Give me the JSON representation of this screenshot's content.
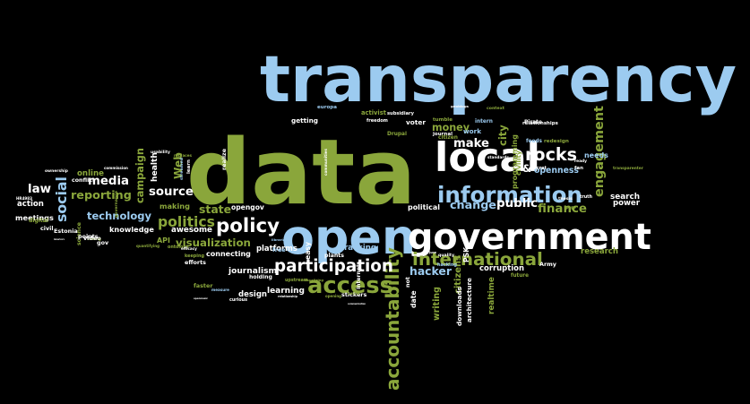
{
  "palette": {
    "background": "#000000",
    "blue": "#9ccbf0",
    "green": "#8aa63b",
    "white": "#ffffff",
    "grey": "#cfcfcf"
  },
  "words": [
    {
      "text": "transparency",
      "color": "#9ccbf0"
    },
    {
      "text": "data",
      "color": "#8aa63b"
    },
    {
      "text": "open",
      "color": "#9ccbf0"
    },
    {
      "text": "government",
      "color": "#ffffff"
    },
    {
      "text": "local",
      "color": "#ffffff"
    },
    {
      "text": "information",
      "color": "#9ccbf0"
    },
    {
      "text": "access",
      "color": "#8aa63b"
    },
    {
      "text": "accountability",
      "color": "#8aa63b"
    },
    {
      "text": "policy",
      "color": "#ffffff"
    },
    {
      "text": "international",
      "color": "#8aa63b"
    },
    {
      "text": "participation",
      "color": "#ffffff"
    },
    {
      "text": "politics",
      "color": "#8aa63b"
    },
    {
      "text": "rocks",
      "color": "#ffffff"
    },
    {
      "text": "engagement",
      "color": "#8aa63b"
    },
    {
      "text": "hacker",
      "color": "#9ccbf0"
    },
    {
      "text": "citizens",
      "color": "#8aa63b"
    },
    {
      "text": "finance",
      "color": "#8aa63b"
    },
    {
      "text": "make",
      "color": "#ffffff"
    },
    {
      "text": "money",
      "color": "#8aa63b"
    },
    {
      "text": "change",
      "color": "#9ccbf0"
    },
    {
      "text": "public",
      "color": "#ffffff"
    },
    {
      "text": "social",
      "color": "#9ccbf0"
    },
    {
      "text": "technology",
      "color": "#9ccbf0"
    },
    {
      "text": "reporting",
      "color": "#8aa63b"
    },
    {
      "text": "media",
      "color": "#ffffff"
    },
    {
      "text": "campaign",
      "color": "#8aa63b"
    },
    {
      "text": "source",
      "color": "#ffffff"
    },
    {
      "text": "visualization",
      "color": "#8aa63b"
    },
    {
      "text": "awesome",
      "color": "#ffffff"
    },
    {
      "text": "knowledge",
      "color": "#ffffff"
    },
    {
      "text": "law",
      "color": "#ffffff"
    },
    {
      "text": "Web",
      "color": "#8aa63b"
    },
    {
      "text": "health",
      "color": "#ffffff"
    },
    {
      "text": "making",
      "color": "#8aa63b"
    },
    {
      "text": "state",
      "color": "#8aa63b"
    },
    {
      "text": "opengov",
      "color": "#ffffff"
    },
    {
      "text": "platforms",
      "color": "#ffffff"
    },
    {
      "text": "tracking",
      "color": "#9ccbf0"
    },
    {
      "text": "connecting",
      "color": "#ffffff"
    },
    {
      "text": "journalism",
      "color": "#ffffff"
    },
    {
      "text": "learning",
      "color": "#ffffff"
    },
    {
      "text": "design",
      "color": "#ffffff"
    },
    {
      "text": "writing",
      "color": "#8aa63b"
    },
    {
      "text": "architecture",
      "color": "#ffffff"
    },
    {
      "text": "realtime",
      "color": "#8aa63b"
    },
    {
      "text": "corruption",
      "color": "#ffffff"
    },
    {
      "text": "research",
      "color": "#8aa63b"
    },
    {
      "text": "search",
      "color": "#ffffff"
    },
    {
      "text": "power",
      "color": "#ffffff"
    },
    {
      "text": "needs",
      "color": "#9ccbf0"
    },
    {
      "text": "openness",
      "color": "#9ccbf0"
    },
    {
      "text": "programming",
      "color": "#8aa63b"
    },
    {
      "text": "political",
      "color": "#ffffff"
    },
    {
      "text": "work",
      "color": "#9ccbf0"
    },
    {
      "text": "getting",
      "color": "#ffffff"
    },
    {
      "text": "activist",
      "color": "#8aa63b"
    },
    {
      "text": "voter",
      "color": "#ffffff"
    },
    {
      "text": "online",
      "color": "#8aa63b"
    },
    {
      "text": "action",
      "color": "#ffffff"
    },
    {
      "text": "meetings",
      "color": "#ffffff"
    },
    {
      "text": "science",
      "color": "#8aa63b"
    },
    {
      "text": "API",
      "color": "#8aa63b"
    },
    {
      "text": "city",
      "color": "#8aa63b"
    },
    {
      "text": "&",
      "color": "#ffffff"
    },
    {
      "text": "freedom",
      "color": "#ffffff"
    },
    {
      "text": "commission",
      "color": "#ffffff"
    },
    {
      "text": "conflict",
      "color": "#ffffff"
    },
    {
      "text": "ownership",
      "color": "#ffffff"
    },
    {
      "text": "governance",
      "color": "#8aa63b"
    },
    {
      "text": "usability",
      "color": "#ffffff"
    },
    {
      "text": "replaces",
      "color": "#8aa63b"
    },
    {
      "text": "streamed",
      "color": "#9ccbf0"
    },
    {
      "text": "learn",
      "color": "#ffffff"
    },
    {
      "text": "realize",
      "color": "#ffffff"
    },
    {
      "text": "communities",
      "color": "#ffffff"
    },
    {
      "text": "subsidiary",
      "color": "#ffffff"
    },
    {
      "text": "europa",
      "color": "#9ccbf0"
    },
    {
      "text": "Drupal",
      "color": "#8aa63b"
    },
    {
      "text": "tumble",
      "color": "#8aa63b"
    },
    {
      "text": "journal",
      "color": "#ffffff"
    },
    {
      "text": "intern",
      "color": "#9ccbf0"
    },
    {
      "text": "relationships",
      "color": "#ffffff"
    },
    {
      "text": "redesign",
      "color": "#8aa63b"
    },
    {
      "text": "feeds",
      "color": "#9ccbf0"
    },
    {
      "text": "ready",
      "color": "#ffffff"
    },
    {
      "text": "fan",
      "color": "#ffffff"
    },
    {
      "text": "transparenter",
      "color": "#8aa63b"
    },
    {
      "text": "civility",
      "color": "#8aa63b"
    },
    {
      "text": "standards",
      "color": "#ffffff"
    },
    {
      "text": "citizen",
      "color": "#8aa63b"
    },
    {
      "text": "Pirate",
      "color": "#ffffff"
    },
    {
      "text": "Army",
      "color": "#ffffff"
    },
    {
      "text": "future",
      "color": "#8aa63b"
    },
    {
      "text": "truth",
      "color": "#ffffff"
    },
    {
      "text": "thesis",
      "color": "#ffffff"
    },
    {
      "text": "PHP",
      "color": "#8aa63b"
    },
    {
      "text": "quality",
      "color": "#ffffff"
    },
    {
      "text": "hacking",
      "color": "#9ccbf0"
    },
    {
      "text": "June",
      "color": "#ffffff"
    },
    {
      "text": "gov",
      "color": "#ffffff"
    },
    {
      "text": "Estonia",
      "color": "#ffffff"
    },
    {
      "text": "America's",
      "color": "#ffffff"
    },
    {
      "text": "civil",
      "color": "#ffffff"
    },
    {
      "text": "digital",
      "color": "#8aa63b"
    },
    {
      "text": "HR4983",
      "color": "#ffffff"
    },
    {
      "text": "taking",
      "color": "#8aa63b"
    },
    {
      "text": "video",
      "color": "#ffffff"
    },
    {
      "text": "points",
      "color": "#ffffff"
    },
    {
      "text": "quantifying",
      "color": "#8aa63b"
    },
    {
      "text": "ontology",
      "color": "#8aa63b"
    },
    {
      "text": "keeping",
      "color": "#8aa63b"
    },
    {
      "text": "efforts",
      "color": "#ffffff"
    },
    {
      "text": "efficacy",
      "color": "#ffffff"
    },
    {
      "text": "faster",
      "color": "#8aa63b"
    },
    {
      "text": "measure",
      "color": "#9ccbf0"
    },
    {
      "text": "openmusic",
      "color": "#ffffff"
    },
    {
      "text": "curious",
      "color": "#ffffff"
    },
    {
      "text": "holding",
      "color": "#ffffff"
    },
    {
      "text": "upstream",
      "color": "#8aa63b"
    },
    {
      "text": "relationship",
      "color": "#ffffff"
    },
    {
      "text": "visualizing",
      "color": "#8aa63b"
    },
    {
      "text": "opening",
      "color": "#8aa63b"
    },
    {
      "text": "stickers",
      "color": "#ffffff"
    },
    {
      "text": "better",
      "color": "#8aa63b"
    },
    {
      "text": "communication",
      "color": "#ffffff"
    },
    {
      "text": "easy",
      "color": "#ffffff"
    },
    {
      "text": "librarian",
      "color": "#9ccbf0"
    },
    {
      "text": "free",
      "color": "#9ccbf0"
    },
    {
      "text": "plants",
      "color": "#ffffff"
    },
    {
      "text": "not",
      "color": "#ffffff"
    },
    {
      "text": "date",
      "color": "#ffffff"
    },
    {
      "text": "PSK",
      "color": "#ffffff"
    },
    {
      "text": "downloads",
      "color": "#ffffff"
    },
    {
      "text": "internet",
      "color": "#ffffff"
    },
    {
      "text": "geoblogs",
      "color": "#ffffff"
    },
    {
      "text": "context",
      "color": "#8aa63b"
    },
    {
      "text": "secret",
      "color": "#ffffff"
    },
    {
      "text": "code",
      "color": "#ffffff"
    },
    {
      "text": "goals",
      "color": "#ffffff"
    }
  ]
}
